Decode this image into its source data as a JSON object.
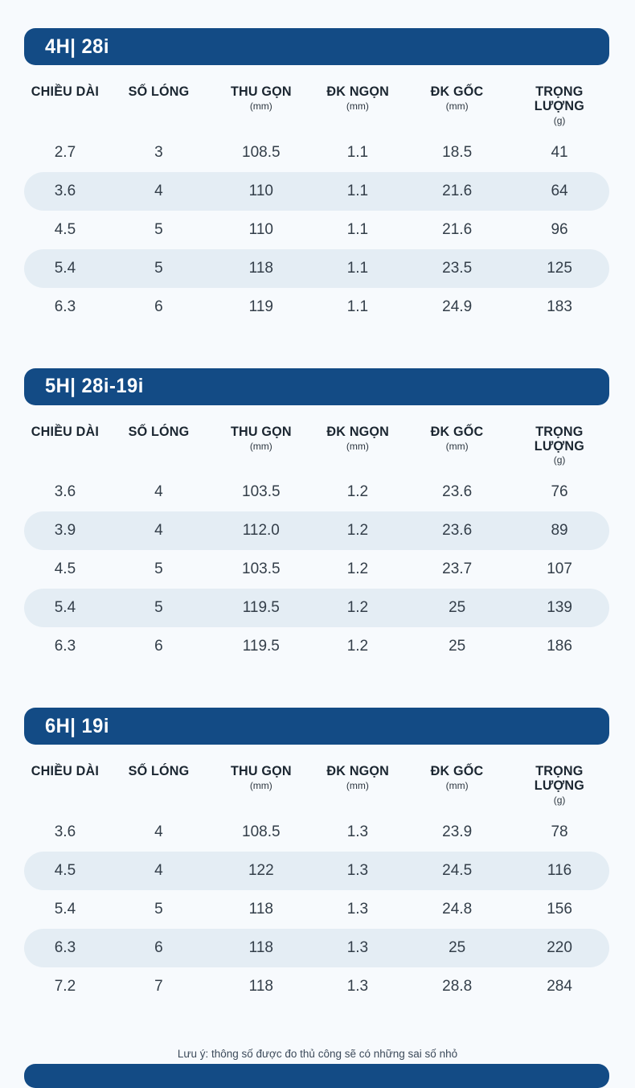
{
  "page": {
    "background_color": "#f7fafd",
    "accent_color": "#134b85",
    "row_highlight_color": "#e4edf4"
  },
  "columns": [
    {
      "label": "CHIỀU DÀI",
      "unit": ""
    },
    {
      "label": "SỐ LÓNG",
      "unit": ""
    },
    {
      "label": "THU GỌN",
      "unit": "(mm)"
    },
    {
      "label": "ĐK NGỌN",
      "unit": "(mm)"
    },
    {
      "label": "ĐK GỐC",
      "unit": "(mm)"
    },
    {
      "label": "TRỌNG LƯỢNG",
      "unit": "(g)"
    }
  ],
  "sections": [
    {
      "title": "4H| 28i",
      "rows": [
        [
          "2.7",
          "3",
          "108.5",
          "1.1",
          "18.5",
          "41"
        ],
        [
          "3.6",
          "4",
          "110",
          "1.1",
          "21.6",
          "64"
        ],
        [
          "4.5",
          "5",
          "110",
          "1.1",
          "21.6",
          "96"
        ],
        [
          "5.4",
          "5",
          "118",
          "1.1",
          "23.5",
          "125"
        ],
        [
          "6.3",
          "6",
          "119",
          "1.1",
          "24.9",
          "183"
        ]
      ]
    },
    {
      "title": "5H| 28i-19i",
      "rows": [
        [
          "3.6",
          "4",
          "103.5",
          "1.2",
          "23.6",
          "76"
        ],
        [
          "3.9",
          "4",
          "112.0",
          "1.2",
          "23.6",
          "89"
        ],
        [
          "4.5",
          "5",
          "103.5",
          "1.2",
          "23.7",
          "107"
        ],
        [
          "5.4",
          "5",
          "119.5",
          "1.2",
          "25",
          "139"
        ],
        [
          "6.3",
          "6",
          "119.5",
          "1.2",
          "25",
          "186"
        ]
      ]
    },
    {
      "title": "6H| 19i",
      "rows": [
        [
          "3.6",
          "4",
          "108.5",
          "1.3",
          "23.9",
          "78"
        ],
        [
          "4.5",
          "4",
          "122",
          "1.3",
          "24.5",
          "116"
        ],
        [
          "5.4",
          "5",
          "118",
          "1.3",
          "24.8",
          "156"
        ],
        [
          "6.3",
          "6",
          "118",
          "1.3",
          "25",
          "220"
        ],
        [
          "7.2",
          "7",
          "118",
          "1.3",
          "28.8",
          "284"
        ]
      ]
    }
  ],
  "note": "Lưu ý: thông số được đo thủ công sẽ có những sai số nhỏ"
}
